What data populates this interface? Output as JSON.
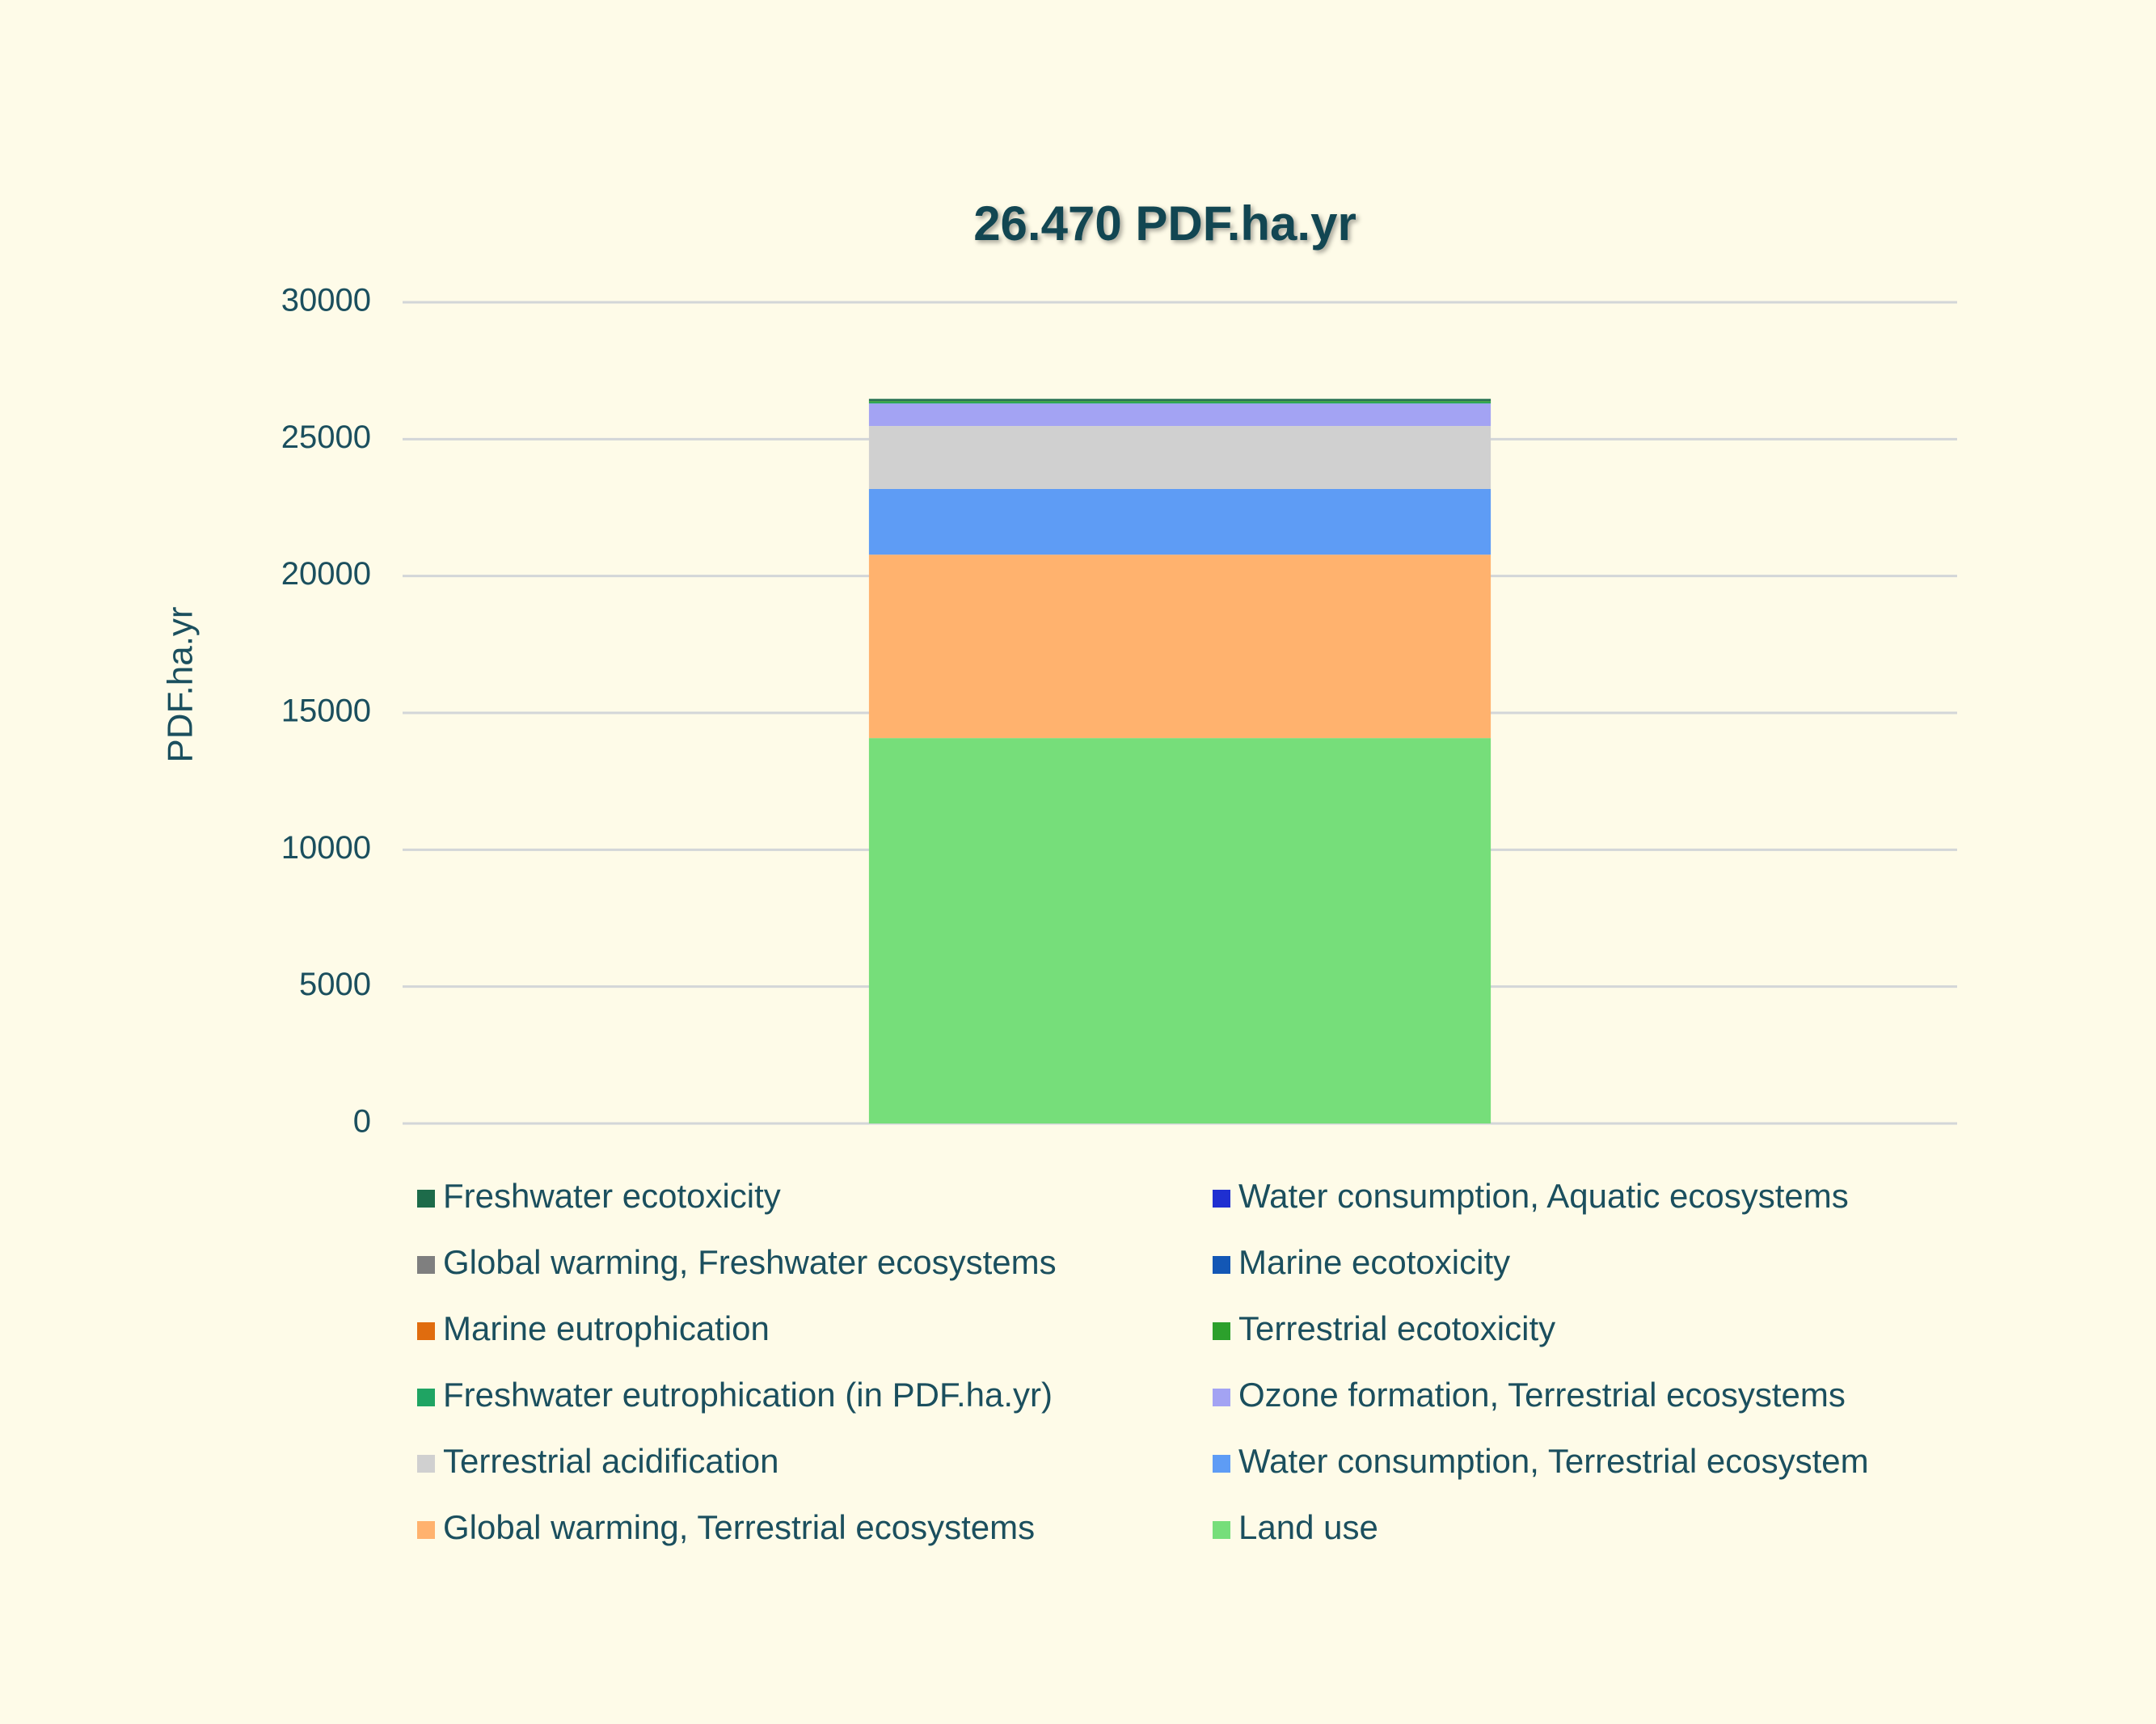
{
  "chart_data": {
    "type": "stacked_bar",
    "title": "26.470 PDF.ha.yr",
    "y_label": "PDF.ha.yr",
    "categories": [
      null
    ],
    "series": [
      {
        "name": "Land use",
        "color": "#76de7a",
        "values": [
          14080
        ]
      },
      {
        "name": "Global warming, Terrestrial ecosystems",
        "color": "#ffb26e",
        "values": [
          6700
        ]
      },
      {
        "name": "Water consumption, Terrestrial ecosystem",
        "color": "#5e9cf5",
        "values": [
          2400
        ]
      },
      {
        "name": "Terrestrial acidification",
        "color": "#d0d0d0",
        "values": [
          2300
        ]
      },
      {
        "name": "Ozone formation, Terrestrial ecosystems",
        "color": "#a3a3f3",
        "values": [
          823
        ]
      },
      {
        "name": "Freshwater eutrophication (in PDF.ha.yr)",
        "color": "#1fa463",
        "values": [
          40
        ]
      },
      {
        "name": "Terrestrial ecotoxicity",
        "color": "#2ca02c",
        "values": [
          50
        ]
      },
      {
        "name": "Marine eutrophication",
        "color": "#e06c0e",
        "values": [
          1
        ]
      },
      {
        "name": "Marine ecotoxicity",
        "color": "#1357b5",
        "values": [
          5
        ]
      },
      {
        "name": "Global warming, Freshwater ecosystems",
        "color": "#7f7f7f",
        "values": [
          1
        ]
      },
      {
        "name": "Water consumption, Aquatic ecosystems",
        "color": "#1f2fd1",
        "values": [
          0.1
        ]
      },
      {
        "name": "Freshwater ecotoxicity",
        "color": "#1d6b4a",
        "values": [
          70
        ]
      }
    ],
    "ylim": [
      0,
      30000
    ],
    "yticks": [
      0,
      5000,
      10000,
      15000,
      20000,
      25000,
      30000
    ],
    "grid": true
  }
}
